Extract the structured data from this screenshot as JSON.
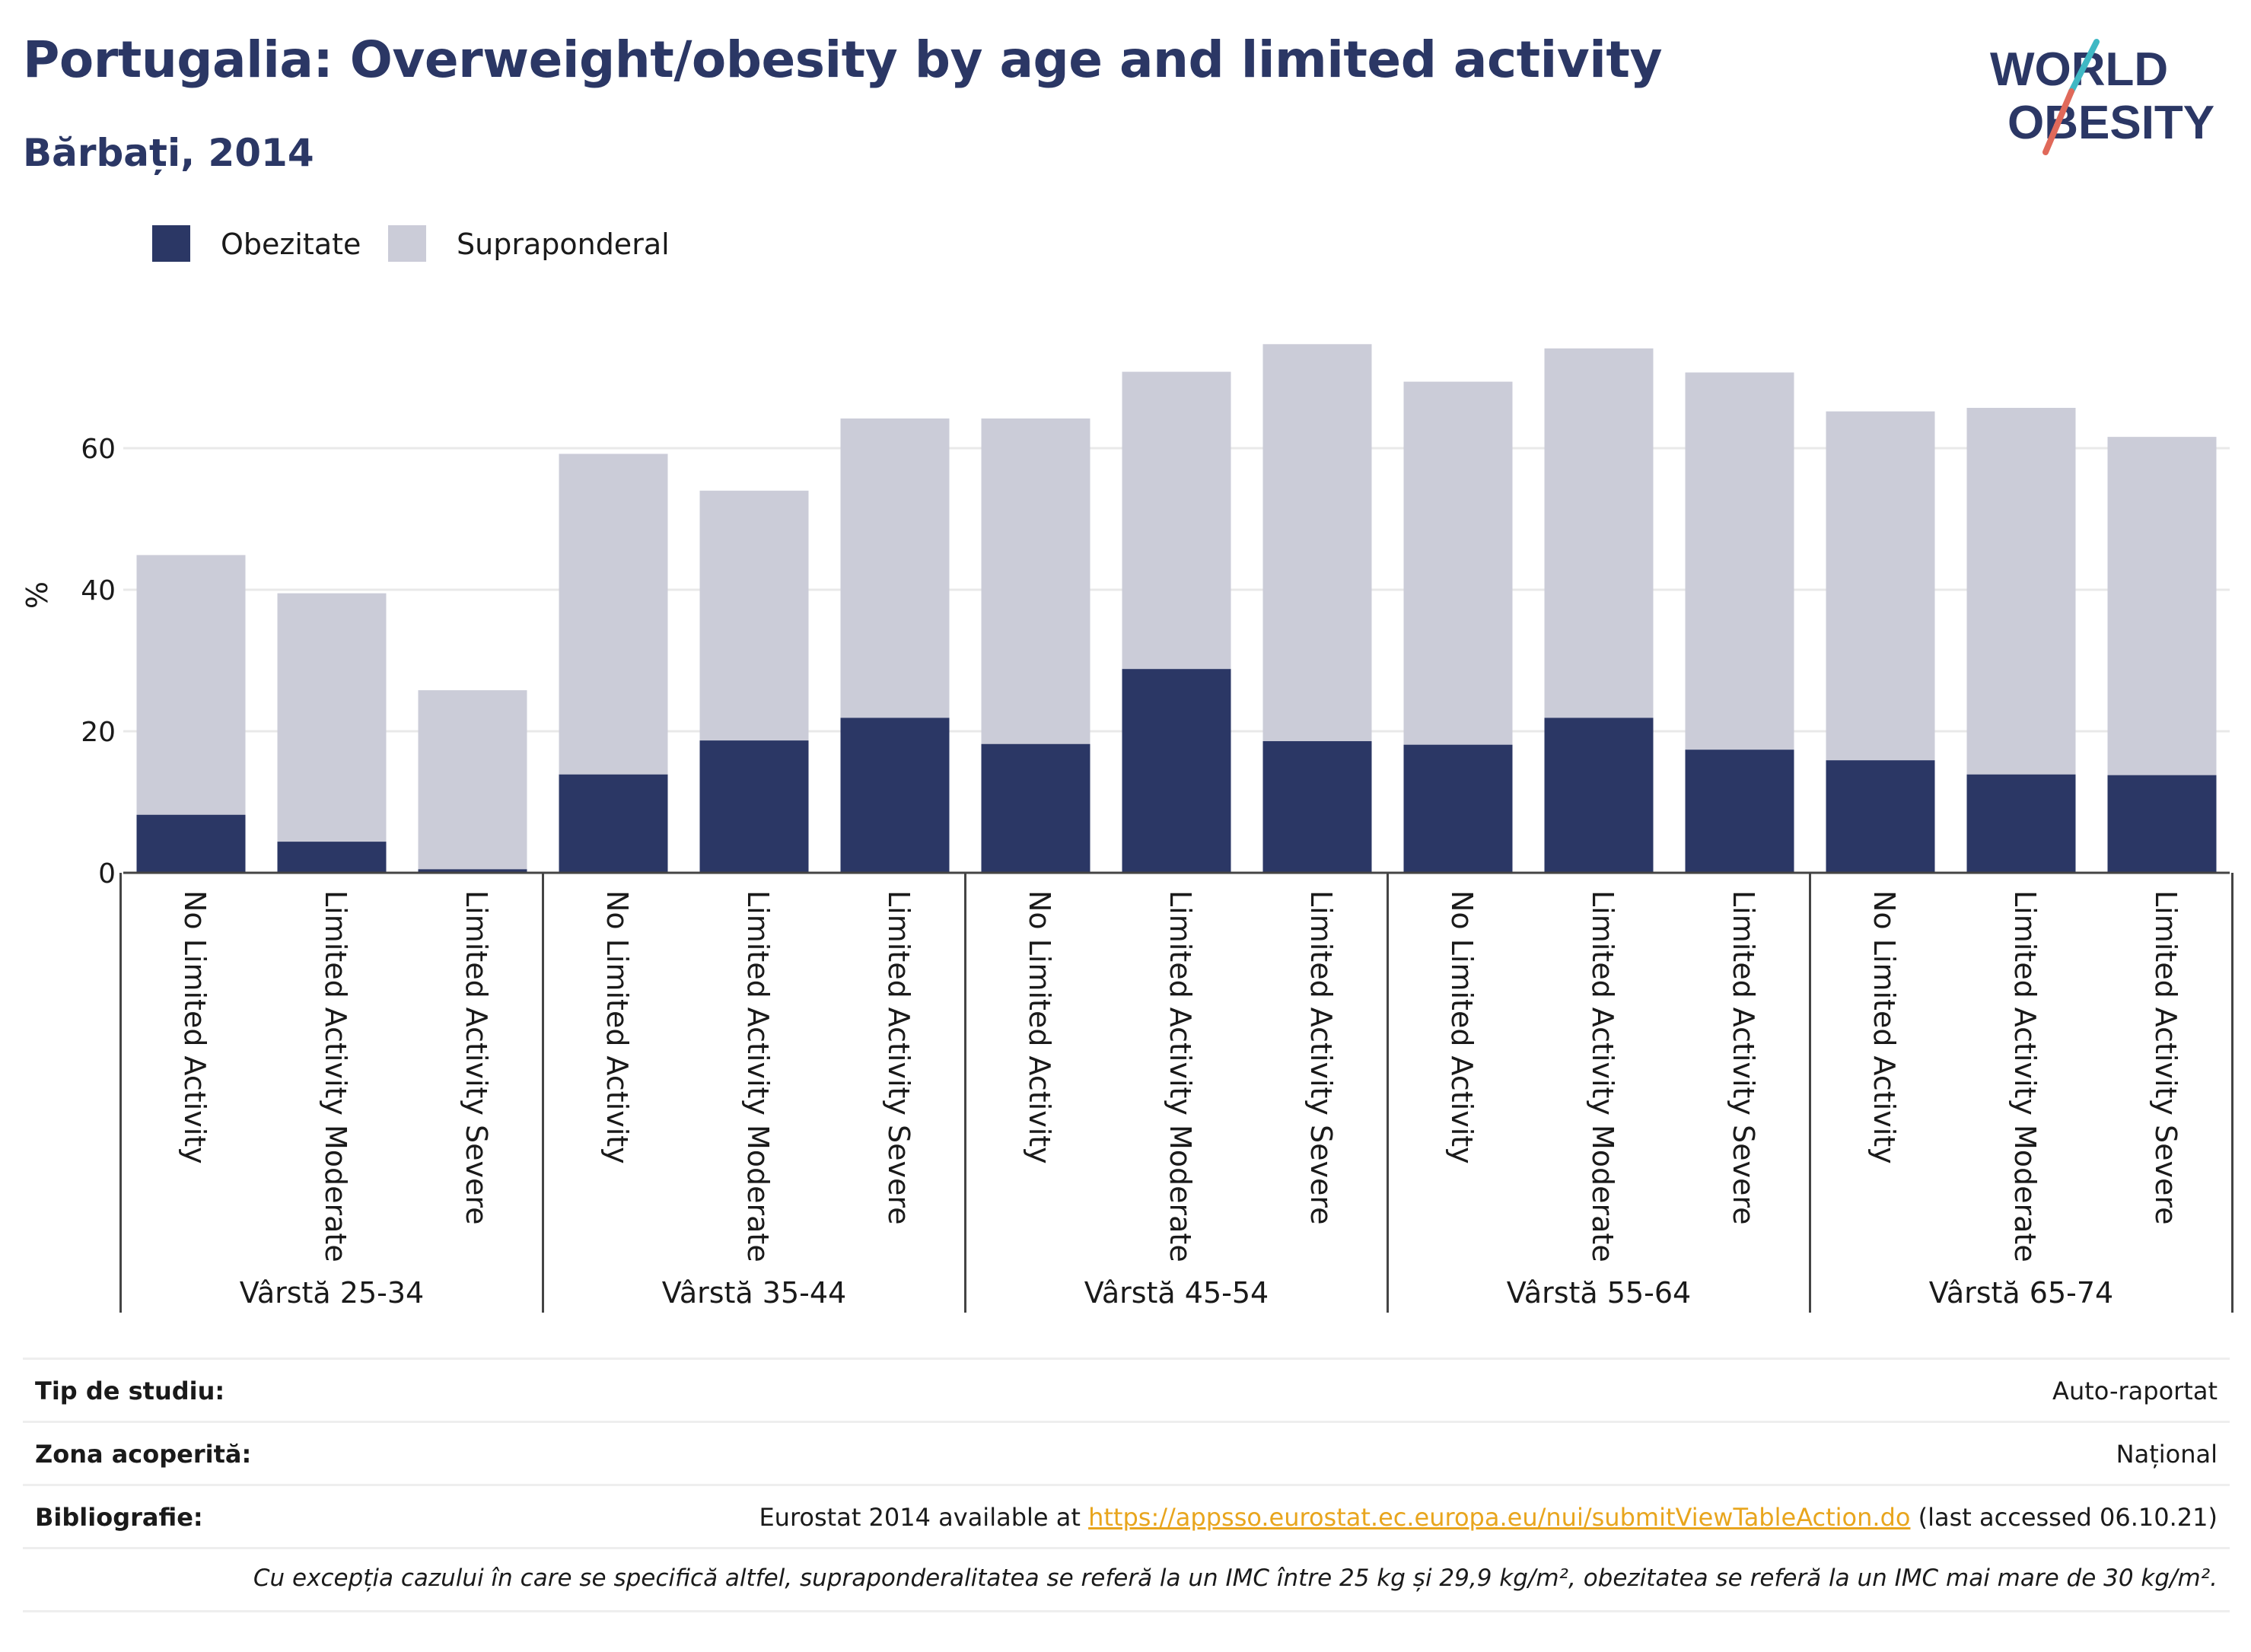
{
  "header": {
    "title": "Portugalia: Overweight/obesity by age and limited activity",
    "subtitle": "Bărbați, 2014",
    "logo_line1": "WORLD",
    "logo_line2": "OBESITY"
  },
  "legend": {
    "obesity_label": "Obezitate",
    "overweight_label": "Supraponderal"
  },
  "colors": {
    "obesity": "#2b3765",
    "overweight": "#cbccd8",
    "logo_text": "#2b3765",
    "logo_accent_teal": "#3fb8c4",
    "logo_accent_red": "#e0695a",
    "link": "#e8a51d"
  },
  "chart_data": {
    "type": "bar",
    "stacked": true,
    "ylabel": "%",
    "ylim": [
      0,
      80
    ],
    "yticks": [
      0,
      20,
      40,
      60
    ],
    "grid": true,
    "legend_position": "top-left",
    "groups": [
      "Vârstă 25-34",
      "Vârstă 35-44",
      "Vârstă 45-54",
      "Vârstă 55-64",
      "Vârstă 65-74"
    ],
    "categories": [
      "No Limited Activity",
      "Limited Activity Moderate",
      "Limited Activity Severe"
    ],
    "series": [
      {
        "name": "Obezitate",
        "values": [
          [
            8.2,
            4.4,
            0.5
          ],
          [
            13.9,
            18.7,
            21.9
          ],
          [
            18.2,
            28.8,
            18.6
          ],
          [
            18.1,
            21.9,
            17.4
          ],
          [
            15.9,
            13.9,
            13.8
          ]
        ]
      },
      {
        "name": "Supraponderal",
        "values": [
          [
            36.7,
            35.1,
            25.3
          ],
          [
            45.3,
            35.3,
            42.3
          ],
          [
            46.0,
            42.0,
            56.1
          ],
          [
            51.3,
            52.2,
            53.3
          ],
          [
            49.3,
            51.8,
            47.8
          ]
        ]
      }
    ]
  },
  "info": {
    "study_type_label": "Tip de studiu:",
    "study_type_value": "Auto-raportat",
    "area_label": "Zona acoperită:",
    "area_value": "Național",
    "bibliography_label": "Bibliografie:",
    "bibliography_prefix": "Eurostat 2014 available at ",
    "bibliography_link": "https://appsso.eurostat.ec.europa.eu/nui/submitViewTableAction.do",
    "bibliography_suffix": " (last accessed 06.10.21)",
    "note": "Cu excepția cazului în care se specifică altfel, supraponderalitatea se referă la un IMC între 25 kg și 29,9 kg/m², obezitatea se referă la un IMC mai mare de 30 kg/m²."
  }
}
